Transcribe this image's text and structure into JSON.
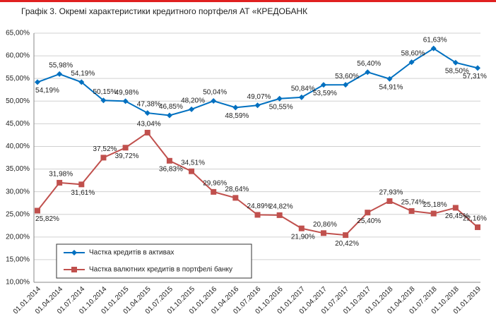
{
  "chart_data": {
    "type": "line",
    "title": "Графік 3. Окремі характеристики кредитного портфеля АТ «КРЕДОБАНК",
    "categories": [
      "01.01.2014",
      "01.04.2014",
      "01.07.2014",
      "01.10.2014",
      "01.01.2015",
      "01.04.2015",
      "01.07.2015",
      "01.10.2015",
      "01.01.2016",
      "01.04.2016",
      "01.07.2016",
      "01.10.2016",
      "01.01.2017",
      "01.04.2017",
      "01.07.2017",
      "01.10.2017",
      "01.01.2018",
      "01.04.2018",
      "01.07.2018",
      "01.10.2018",
      "01.01.2019"
    ],
    "series": [
      {
        "name": "Частка кредитів в активах",
        "color": "#0070c0",
        "marker": "diamond",
        "values": [
          54.19,
          55.98,
          54.19,
          50.15,
          49.98,
          47.38,
          46.85,
          48.2,
          50.04,
          48.59,
          49.07,
          50.55,
          50.84,
          53.59,
          53.6,
          56.4,
          54.91,
          58.6,
          61.63,
          58.5,
          57.31
        ],
        "value_labels": [
          "54,19%",
          "55,98%",
          "54,19%",
          "50,15%",
          "49,98%",
          "47,38%",
          "46,85%",
          "48,20%",
          "50,04%",
          "48,59%",
          "49,07%",
          "50,55%",
          "50,84%",
          "53,59%",
          "53,60%",
          "56,40%",
          "54,91%",
          "58,60%",
          "61,63%",
          "58,50%",
          "57,31%"
        ]
      },
      {
        "name": "Частка валютних кредитів в портфелі банку",
        "color": "#c0504d",
        "marker": "square",
        "values": [
          25.82,
          31.98,
          31.61,
          37.52,
          39.72,
          43.04,
          36.83,
          34.51,
          29.96,
          28.64,
          24.89,
          24.82,
          21.9,
          20.86,
          20.42,
          25.4,
          27.93,
          25.74,
          25.18,
          26.45,
          22.16
        ],
        "value_labels": [
          "25,82%",
          "31,98%",
          "31,61%",
          "37,52%",
          "39,72%",
          "43,04%",
          "36,83%",
          "34,51%",
          "29,96%",
          "28,64%",
          "24,89%",
          "24,82%",
          "21,90%",
          "20,86%",
          "20,42%",
          "25,40%",
          "27,93%",
          "25,74%",
          "25,18%",
          "26,45%",
          "22,16%"
        ]
      }
    ],
    "ylim": [
      10,
      65
    ],
    "yticks": [
      {
        "value": 10,
        "label": "10,00%"
      },
      {
        "value": 15,
        "label": "15,00%"
      },
      {
        "value": 20,
        "label": "20,00%"
      },
      {
        "value": 25,
        "label": "25,00%"
      },
      {
        "value": 30,
        "label": "30,00%"
      },
      {
        "value": 35,
        "label": "35,00%"
      },
      {
        "value": 40,
        "label": "40,00%"
      },
      {
        "value": 45,
        "label": "45,00%"
      },
      {
        "value": 50,
        "label": "50,00%"
      },
      {
        "value": 55,
        "label": "55,00%"
      },
      {
        "value": 60,
        "label": "60,00%"
      },
      {
        "value": 65,
        "label": "65,00%"
      }
    ],
    "grid": true
  }
}
